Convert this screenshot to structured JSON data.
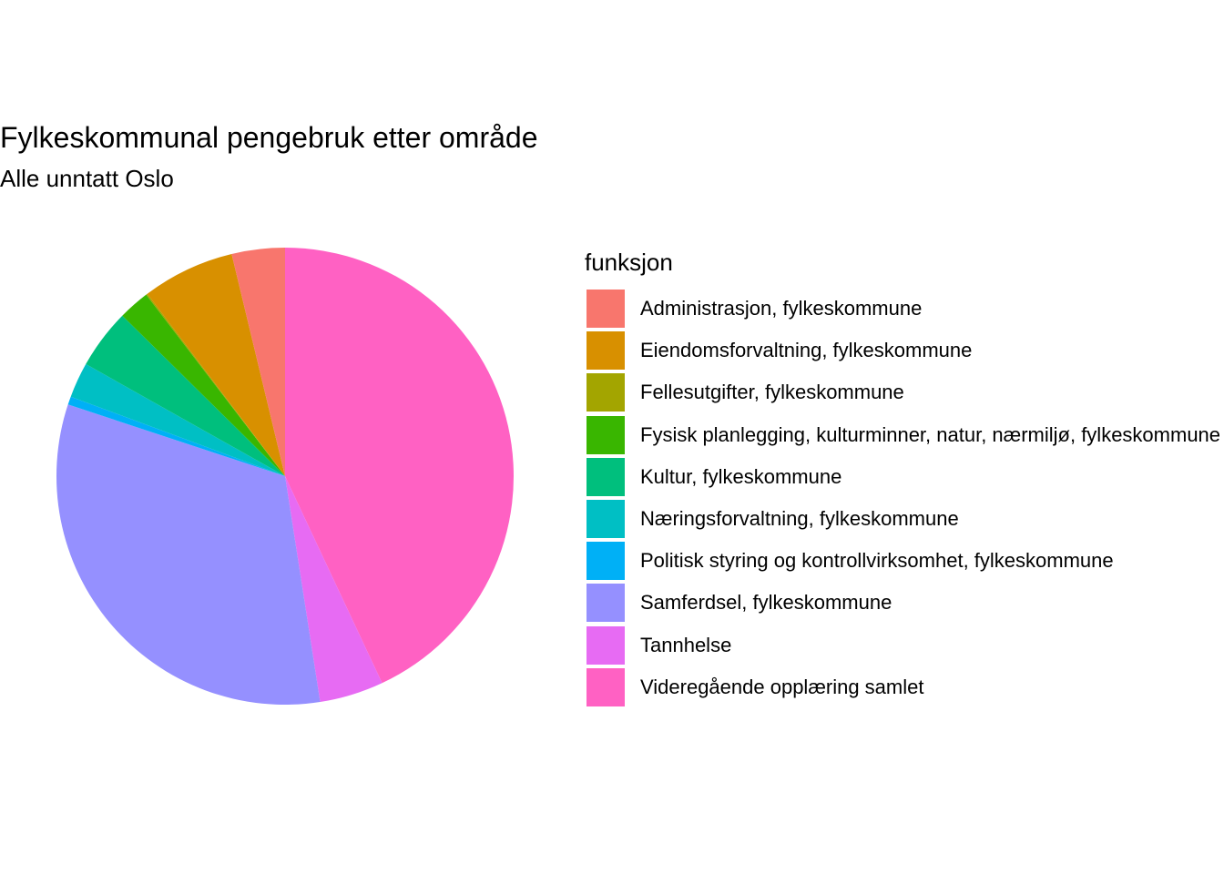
{
  "chart_data": {
    "type": "pie",
    "title": "Fylkeskommunal pengebruk etter område",
    "subtitle": "Alle unntatt Oslo",
    "legend_title": "funksjon",
    "legend_placement": "right",
    "start": "top",
    "direction": "clockwise",
    "slices": [
      {
        "label": "Videregående opplæring samlet",
        "value": 44.7,
        "color": "#FF61C3"
      },
      {
        "label": "Tannhelse",
        "value": 4.7,
        "color": "#E76BF3"
      },
      {
        "label": "Samferdsel, fylkeskommune",
        "value": 33.8,
        "color": "#9590FF"
      },
      {
        "label": "Politisk styring og kontrollvirksomhet, fylkeskommune",
        "value": 0.6,
        "color": "#00B0F6"
      },
      {
        "label": "Næringsforvaltning, fylkeskommune",
        "value": 2.6,
        "color": "#00BFC4"
      },
      {
        "label": "Kultur, fylkeskommune",
        "value": 4.4,
        "color": "#00BF7D"
      },
      {
        "label": "Fysisk planlegging, kulturminner, natur, nærmiljø, fylkeskommune",
        "value": 2.3,
        "color": "#39B600"
      },
      {
        "label": "Fellesutgifter, fylkeskommune",
        "value": 0.1,
        "color": "#A3A500"
      },
      {
        "label": "Eiendomsforvaltning, fylkeskommune",
        "value": 6.8,
        "color": "#D89000"
      },
      {
        "label": "Administrasjon, fylkeskommune",
        "value": 3.9,
        "color": "#F8766D"
      }
    ],
    "legend_order": [
      "Administrasjon, fylkeskommune",
      "Eiendomsforvaltning, fylkeskommune",
      "Fellesutgifter, fylkeskommune",
      "Fysisk planlegging, kulturminner, natur, nærmiljø, fylkeskommune",
      "Kultur, fylkeskommune",
      "Næringsforvaltning, fylkeskommune",
      "Politisk styring og kontrollvirksomhet, fylkeskommune",
      "Samferdsel, fylkeskommune",
      "Tannhelse",
      "Videregående opplæring samlet"
    ]
  }
}
